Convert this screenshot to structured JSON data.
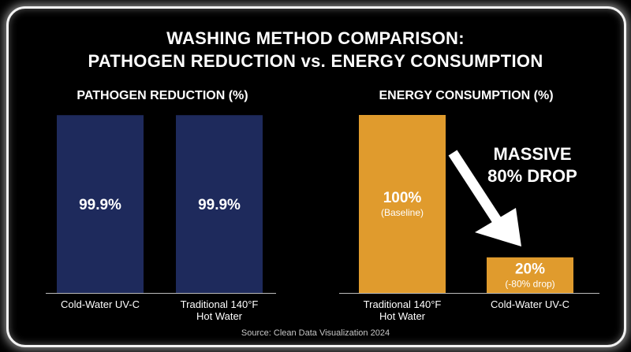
{
  "title_line1": "WASHING METHOD COMPARISON:",
  "title_line2": "PATHOGEN REDUCTION vs. ENERGY CONSUMPTION",
  "source": "Source: Clean Data Visualization 2024",
  "annotation": {
    "line1": "MASSIVE",
    "line2": "80% DROP"
  },
  "colors": {
    "pathogen_bar": "#1e2a5c",
    "energy_bar": "#e09b2d",
    "background": "#000000"
  },
  "chart_data": [
    {
      "type": "bar",
      "title": "PATHOGEN REDUCTION (%)",
      "categories": [
        [
          "Cold-Water UV-C"
        ],
        [
          "Traditional 140°F",
          "Hot Water"
        ]
      ],
      "values": [
        99.9,
        99.9
      ],
      "value_labels": [
        "99.9%",
        "99.9%"
      ],
      "sub_labels": [
        "",
        ""
      ],
      "ylim": [
        0,
        100
      ]
    },
    {
      "type": "bar",
      "title": "ENERGY CONSUMPTION (%)",
      "categories": [
        [
          "Traditional 140°F",
          "Hot Water"
        ],
        [
          "Cold-Water UV-C"
        ]
      ],
      "values": [
        100,
        20
      ],
      "value_labels": [
        "100%",
        "20%"
      ],
      "sub_labels": [
        "(Baseline)",
        "(-80% drop)"
      ],
      "ylim": [
        0,
        100
      ]
    }
  ]
}
